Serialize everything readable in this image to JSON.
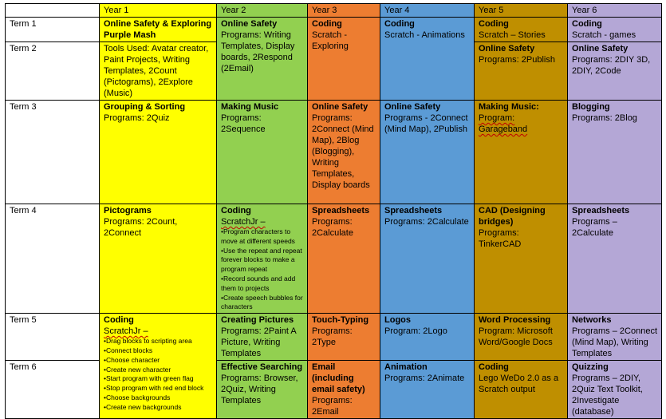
{
  "years": [
    "Year 1",
    "Year 2",
    "Year 3",
    "Year 4",
    "Year 5",
    "Year 6"
  ],
  "terms": [
    "Term 1",
    "Term 2",
    "Term 3",
    "Term 4",
    "Term 5",
    "Term 6"
  ],
  "colors": {
    "year1": "#ffff00",
    "year2": "#92d050",
    "year3": "#ed7d31",
    "year4": "#5b9bd5",
    "year5": "#bf8f00",
    "year6": "#b4a7d6"
  },
  "cells": {
    "t1": {
      "y1": {
        "title": "Online Safety & Exploring Purple Mash",
        "text": ""
      },
      "y2": {
        "title": "Online Safety",
        "text": "Programs: Writing Templates, Display boards, 2Respond (2Email)"
      },
      "y3": {
        "title": "Coding",
        "text": "Scratch - Exploring"
      },
      "y4": {
        "title": "Coding",
        "text": "Scratch - Animations"
      },
      "y5": {
        "title": "Coding",
        "text": "Scratch – Stories"
      },
      "y6": {
        "title": "Coding",
        "text": "Scratch - games"
      }
    },
    "t2": {
      "y1": {
        "text": "Tools Used: Avatar creator, Paint Projects, Writing Templates, 2Count (Pictograms), 2Explore (Music)"
      },
      "y5": {
        "title": "Online Safety",
        "text": "Programs: 2Publish"
      },
      "y6": {
        "title": "Online Safety",
        "text": "Programs: 2DIY 3D, 2DIY, 2Code"
      }
    },
    "t3": {
      "y1": {
        "title": "Grouping & Sorting",
        "text": "Programs: 2Quiz"
      },
      "y2": {
        "title": "Making Music",
        "text": "Programs: 2Sequence"
      },
      "y3": {
        "title": "Online Safety",
        "text": "Programs: 2Connect (Mind Map), 2Blog (Blogging), Writing Templates, Display boards"
      },
      "y4": {
        "title": "Online Safety",
        "text": "Programs - 2Connect (Mind Map), 2Publish"
      },
      "y5": {
        "title": "Making Music:",
        "text": "Program: Garageband"
      },
      "y6": {
        "title": "Blogging",
        "text": "Programs: 2Blog"
      }
    },
    "t4": {
      "y1": {
        "title": "Pictograms",
        "text": "Programs: 2Count, 2Connect"
      },
      "y2": {
        "title": "Coding",
        "text": "ScratchJr –",
        "bullets": [
          "Program characters to move at different speeds",
          "Use the repeat and repeat forever blocks to make a program repeat",
          "Record sounds and add them to projects",
          "Create speech bubbles for characters"
        ]
      },
      "y3": {
        "title": "Spreadsheets",
        "text": "Programs: 2Calculate"
      },
      "y4": {
        "title": "Spreadsheets",
        "text": "Programs: 2Calculate"
      },
      "y5": {
        "title": "CAD (Designing bridges)",
        "text": "Programs: TinkerCAD"
      },
      "y6": {
        "title": "Spreadsheets",
        "text": "Programs – 2Calculate"
      }
    },
    "t5": {
      "y1": {
        "title": "Coding",
        "text": "ScratchJr –",
        "bullets": [
          "Drag blocks to scripting area",
          "Connect blocks",
          "Choose character",
          "Create new character",
          "Start program with green flag",
          "Stop program with red end block",
          "Choose backgrounds",
          "Create new backgrounds"
        ]
      },
      "y2": {
        "title": "Creating Pictures",
        "text": "Programs: 2Paint A Picture, Writing Templates"
      },
      "y3": {
        "title": "Touch-Typing",
        "text": "Programs: 2Type"
      },
      "y4": {
        "title": "Logos",
        "text": "Program: 2Logo"
      },
      "y5": {
        "title": "Word Processing",
        "text": "Program: Microsoft Word/Google Docs"
      },
      "y6": {
        "title": "Networks",
        "text": "Programs – 2Connect (Mind Map), Writing Templates"
      }
    },
    "t6": {
      "y2": {
        "title": "Effective Searching",
        "text": "Programs: Browser, 2Quiz, Writing Templates"
      },
      "y3": {
        "title": "Email (including email safety)",
        "text": "Programs: 2Email"
      },
      "y4": {
        "title": "Animation",
        "text": "Programs: 2Animate"
      },
      "y5": {
        "title": "Coding",
        "text": "Lego WeDo 2.0 as a Scratch output"
      },
      "y6": {
        "title": "Quizzing",
        "text": "Programs – 2DIY, 2Quiz Text Toolkit, 2Investigate (database)"
      }
    }
  }
}
